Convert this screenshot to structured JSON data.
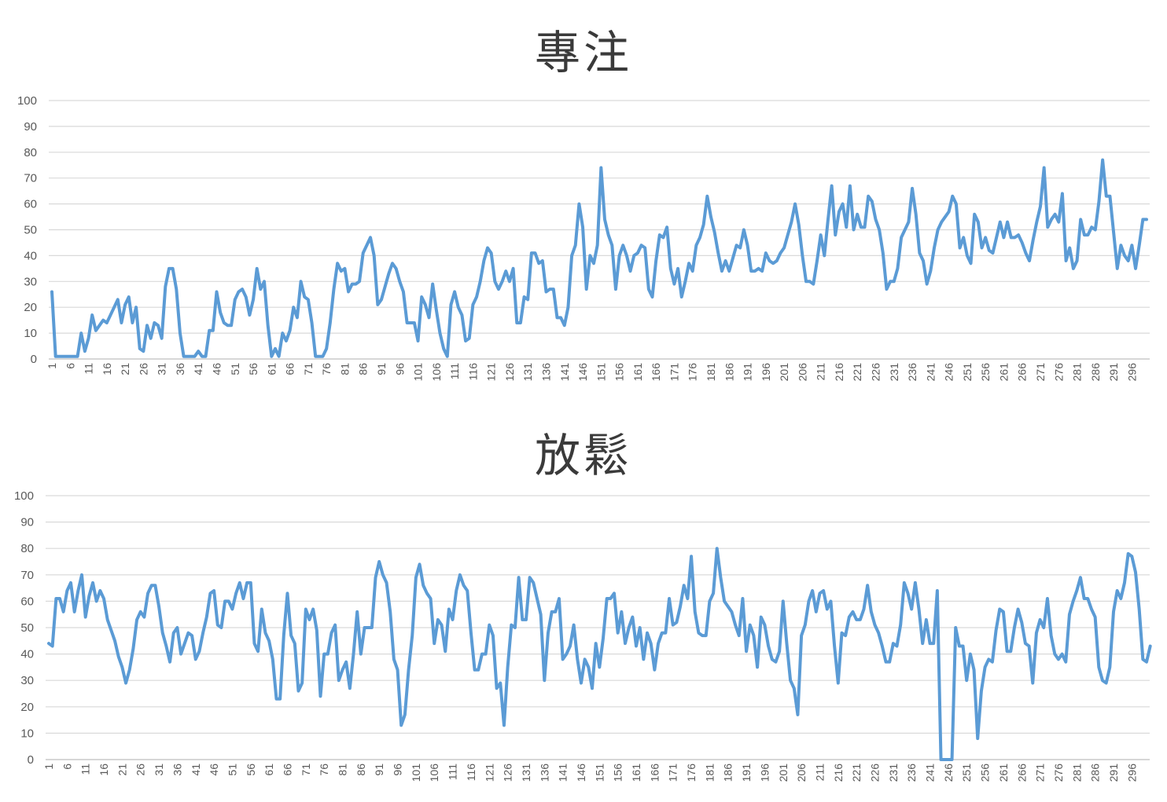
{
  "chart_data": [
    {
      "type": "line",
      "title": "專注",
      "xlabel": "",
      "ylabel": "",
      "ylim": [
        0,
        100
      ],
      "yticks": [
        0,
        10,
        20,
        30,
        40,
        50,
        60,
        70,
        80,
        90,
        100
      ],
      "x_range": [
        1,
        300
      ],
      "xtick_labels": [
        "1",
        "6",
        "11",
        "16",
        "21",
        "26",
        "31",
        "36",
        "41",
        "46",
        "51",
        "56",
        "61",
        "66",
        "71",
        "76",
        "81",
        "86",
        "91",
        "96",
        "101",
        "106",
        "111",
        "116",
        "121",
        "126",
        "131",
        "136",
        "141",
        "146",
        "151",
        "156",
        "161",
        "166",
        "171",
        "176",
        "181",
        "186",
        "191",
        "196",
        "201",
        "206",
        "211",
        "216",
        "221",
        "226",
        "231",
        "236",
        "241",
        "246",
        "251",
        "256",
        "261",
        "266",
        "271",
        "276",
        "281",
        "286",
        "291",
        "296"
      ],
      "grid": "horizontal",
      "line_color": "#5B9BD5",
      "values": [
        26,
        1,
        1,
        1,
        1,
        1,
        1,
        1,
        10,
        3,
        8,
        17,
        11,
        13,
        15,
        14,
        17,
        20,
        23,
        14,
        21,
        24,
        14,
        20,
        4,
        3,
        13,
        8,
        14,
        13,
        8,
        28,
        35,
        35,
        27,
        10,
        1,
        1,
        1,
        1,
        3,
        1,
        1,
        11,
        11,
        26,
        18,
        14,
        13,
        13,
        23,
        26,
        27,
        24,
        17,
        23,
        35,
        27,
        30,
        13,
        1,
        4,
        1,
        10,
        7,
        11,
        20,
        16,
        30,
        24,
        23,
        14,
        1,
        1,
        1,
        4,
        14,
        27,
        37,
        34,
        35,
        26,
        29,
        29,
        30,
        41,
        44,
        47,
        40,
        21,
        23,
        28,
        33,
        37,
        35,
        30,
        26,
        14,
        14,
        14,
        7,
        24,
        21,
        16,
        29,
        19,
        10,
        4,
        1,
        21,
        26,
        20,
        17,
        7,
        8,
        21,
        24,
        30,
        38,
        43,
        41,
        30,
        27,
        30,
        34,
        30,
        35,
        14,
        14,
        24,
        23,
        41,
        41,
        37,
        38,
        26,
        27,
        27,
        16,
        16,
        13,
        20,
        40,
        44,
        60,
        51,
        27,
        40,
        37,
        44,
        74,
        54,
        48,
        44,
        27,
        40,
        44,
        40,
        34,
        40,
        41,
        44,
        43,
        27,
        24,
        38,
        48,
        47,
        51,
        35,
        29,
        35,
        24,
        30,
        37,
        34,
        44,
        47,
        52,
        63,
        55,
        49,
        41,
        34,
        38,
        34,
        39,
        44,
        43,
        50,
        44,
        34,
        34,
        35,
        34,
        41,
        38,
        37,
        38,
        41,
        43,
        48,
        53,
        60,
        52,
        40,
        30,
        30,
        29,
        38,
        48,
        40,
        54,
        67,
        48,
        57,
        60,
        51,
        67,
        50,
        56,
        51,
        51,
        63,
        61,
        54,
        50,
        41,
        27,
        30,
        30,
        35,
        47,
        50,
        53,
        66,
        56,
        41,
        38,
        29,
        34,
        43,
        50,
        53,
        55,
        57,
        63,
        60,
        43,
        47,
        40,
        37,
        56,
        53,
        43,
        47,
        42,
        41,
        47,
        53,
        47,
        53,
        47,
        47,
        48,
        45,
        41,
        38,
        46,
        53,
        59,
        74,
        51,
        54,
        56,
        53,
        64,
        38,
        43,
        35,
        38,
        54,
        48,
        48,
        51,
        50,
        61,
        77,
        63,
        63,
        49,
        35,
        44,
        40,
        38,
        44,
        35,
        44,
        54,
        54
      ]
    },
    {
      "type": "line",
      "title": "放鬆",
      "xlabel": "",
      "ylabel": "",
      "ylim": [
        0,
        100
      ],
      "yticks": [
        0,
        10,
        20,
        30,
        40,
        50,
        60,
        70,
        80,
        90,
        100
      ],
      "x_range": [
        1,
        300
      ],
      "xtick_labels": [
        "1",
        "6",
        "11",
        "16",
        "21",
        "26",
        "31",
        "36",
        "41",
        "46",
        "51",
        "56",
        "61",
        "66",
        "71",
        "76",
        "81",
        "86",
        "91",
        "96",
        "101",
        "106",
        "111",
        "116",
        "121",
        "126",
        "131",
        "136",
        "141",
        "146",
        "151",
        "156",
        "161",
        "166",
        "171",
        "176",
        "181",
        "186",
        "191",
        "196",
        "201",
        "206",
        "211",
        "216",
        "221",
        "226",
        "231",
        "236",
        "241",
        "246",
        "251",
        "256",
        "261",
        "266",
        "271",
        "276",
        "281",
        "286",
        "291",
        "296"
      ],
      "grid": "horizontal",
      "line_color": "#5B9BD5",
      "values": [
        44,
        43,
        61,
        61,
        56,
        64,
        67,
        56,
        64,
        70,
        54,
        62,
        67,
        60,
        64,
        61,
        53,
        49,
        45,
        39,
        35,
        29,
        34,
        42,
        53,
        56,
        54,
        63,
        66,
        66,
        58,
        48,
        43,
        37,
        48,
        50,
        40,
        44,
        48,
        47,
        38,
        41,
        48,
        54,
        63,
        64,
        51,
        50,
        60,
        60,
        57,
        63,
        67,
        61,
        67,
        67,
        44,
        41,
        57,
        48,
        45,
        38,
        23,
        23,
        47,
        63,
        47,
        44,
        26,
        29,
        57,
        53,
        57,
        49,
        24,
        40,
        40,
        48,
        51,
        30,
        34,
        37,
        27,
        40,
        56,
        40,
        50,
        50,
        50,
        69,
        75,
        70,
        67,
        56,
        38,
        34,
        13,
        17,
        34,
        47,
        69,
        74,
        66,
        63,
        61,
        44,
        53,
        51,
        41,
        57,
        53,
        64,
        70,
        66,
        64,
        48,
        34,
        34,
        40,
        40,
        51,
        47,
        27,
        29,
        13,
        35,
        51,
        50,
        69,
        53,
        53,
        69,
        67,
        61,
        55,
        30,
        48,
        56,
        56,
        61,
        38,
        40,
        43,
        51,
        38,
        29,
        38,
        35,
        27,
        44,
        35,
        46,
        61,
        61,
        63,
        48,
        56,
        44,
        50,
        54,
        43,
        50,
        38,
        48,
        44,
        34,
        44,
        48,
        48,
        61,
        51,
        52,
        58,
        66,
        61,
        77,
        56,
        48,
        47,
        47,
        60,
        63,
        80,
        69,
        60,
        58,
        56,
        51,
        47,
        61,
        41,
        51,
        47,
        35,
        54,
        51,
        43,
        38,
        37,
        41,
        60,
        44,
        30,
        27,
        17,
        47,
        51,
        60,
        64,
        56,
        63,
        64,
        57,
        60,
        43,
        29,
        48,
        47,
        54,
        56,
        53,
        53,
        57,
        66,
        56,
        51,
        48,
        43,
        37,
        37,
        44,
        43,
        51,
        67,
        63,
        57,
        67,
        57,
        44,
        53,
        44,
        44,
        64,
        0,
        0,
        0,
        0,
        50,
        43,
        43,
        30,
        40,
        34,
        8,
        26,
        35,
        38,
        37,
        49,
        57,
        56,
        41,
        41,
        50,
        57,
        52,
        44,
        43,
        29,
        48,
        53,
        50,
        61,
        47,
        40,
        38,
        40,
        37,
        55,
        60,
        64,
        69,
        61,
        61,
        57,
        54,
        35,
        30,
        29,
        35,
        56,
        64,
        61,
        67,
        78,
        77,
        71,
        57,
        38,
        37,
        43
      ]
    }
  ]
}
